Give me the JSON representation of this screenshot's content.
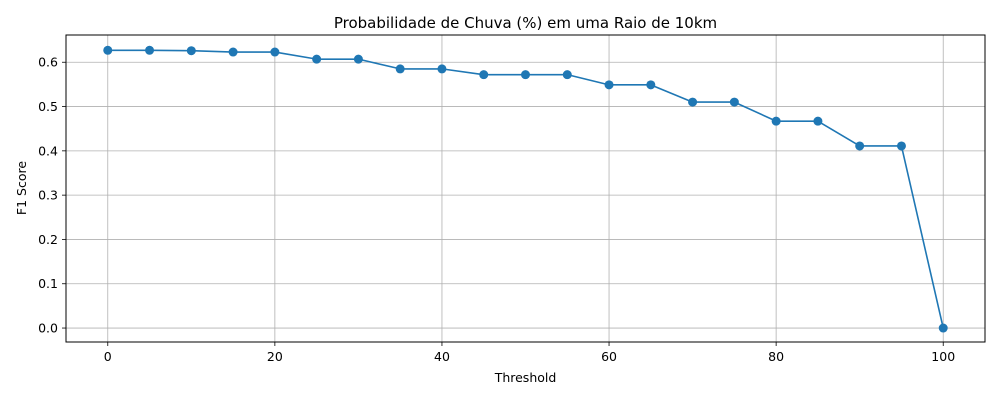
{
  "chart_data": {
    "type": "line",
    "title": "Probabilidade de Chuva (%) em uma Raio de 10km",
    "xlabel": "Threshold",
    "ylabel": "F1 Score",
    "xlim": [
      -5,
      105
    ],
    "ylim": [
      -0.0315,
      0.6615
    ],
    "xticks": [
      0,
      20,
      40,
      60,
      80,
      100
    ],
    "yticks": [
      0.0,
      0.1,
      0.2,
      0.3,
      0.4,
      0.5,
      0.6
    ],
    "grid": true,
    "series": [
      {
        "color": "#1f77b4",
        "marker": "circle",
        "x": [
          0,
          5,
          10,
          15,
          20,
          25,
          30,
          35,
          40,
          45,
          50,
          55,
          60,
          65,
          70,
          75,
          80,
          85,
          90,
          95,
          100
        ],
        "y": [
          0.627,
          0.627,
          0.626,
          0.623,
          0.623,
          0.607,
          0.607,
          0.585,
          0.585,
          0.572,
          0.572,
          0.572,
          0.549,
          0.549,
          0.51,
          0.51,
          0.467,
          0.467,
          0.411,
          0.411,
          0.0
        ]
      }
    ]
  }
}
